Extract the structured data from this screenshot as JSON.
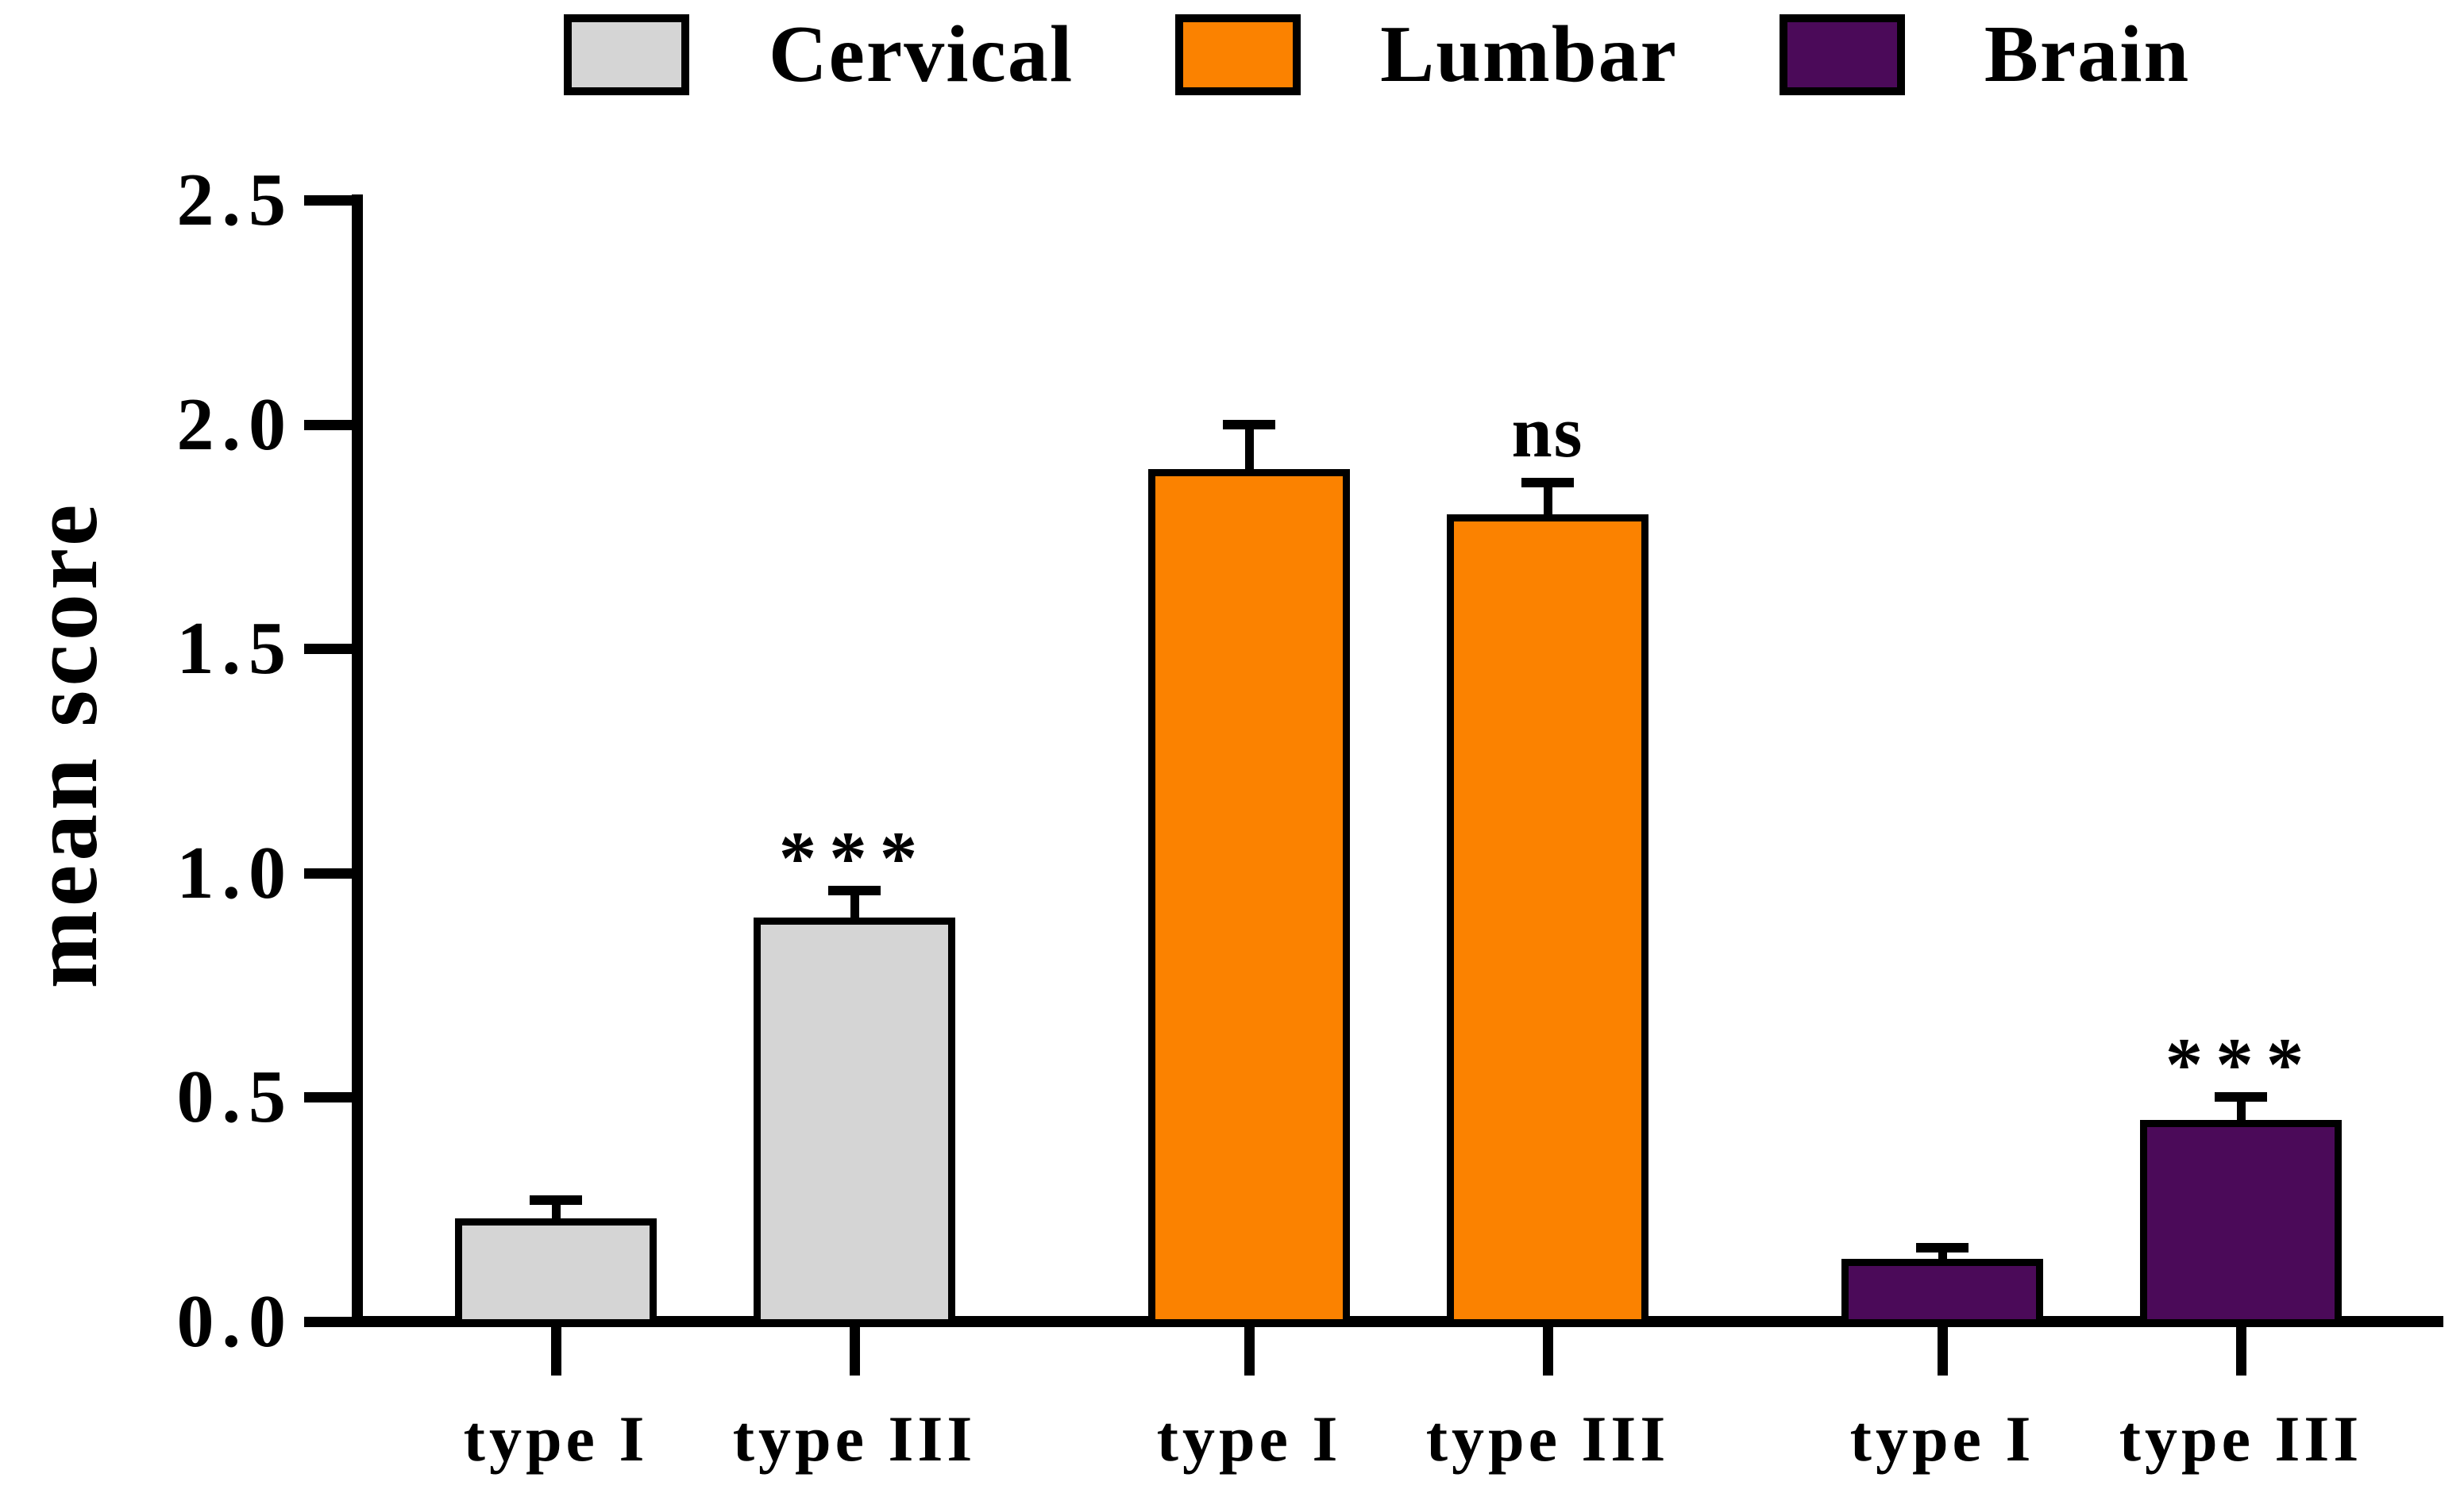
{
  "figure": {
    "background": "#ffffff",
    "axis_color": "#000000",
    "text_color": "#000000"
  },
  "legend": {
    "position": "top",
    "items": [
      {
        "label": "Cervical",
        "color": "#d5d5d5"
      },
      {
        "label": "Lumbar",
        "color": "#fb8200"
      },
      {
        "label": "Brain",
        "color": "#4b0a59"
      }
    ]
  },
  "chart_data": {
    "type": "bar",
    "title": "",
    "xlabel": "",
    "ylabel": "mean score",
    "ylim": [
      0,
      2.5
    ],
    "yticks": [
      "0.0",
      "0.5",
      "1.0",
      "1.5",
      "2.0",
      "2.5"
    ],
    "grid": false,
    "legend_position": "top",
    "error_bars": "upper SEM caps",
    "groups": [
      {
        "name": "Cervical",
        "color": "#d5d5d5",
        "bars": [
          {
            "label": "type I",
            "value": 0.23,
            "sem": 0.04,
            "annotation": ""
          },
          {
            "label": "type III",
            "value": 0.9,
            "sem": 0.06,
            "annotation": "***"
          }
        ]
      },
      {
        "name": "Lumbar",
        "color": "#fb8200",
        "bars": [
          {
            "label": "type I",
            "value": 1.9,
            "sem": 0.1,
            "annotation": ""
          },
          {
            "label": "type III",
            "value": 1.8,
            "sem": 0.07,
            "annotation": "ns"
          }
        ]
      },
      {
        "name": "Brain",
        "color": "#4b0a59",
        "bars": [
          {
            "label": "type I",
            "value": 0.14,
            "sem": 0.025,
            "annotation": ""
          },
          {
            "label": "type III",
            "value": 0.45,
            "sem": 0.05,
            "annotation": "***"
          }
        ]
      }
    ]
  }
}
